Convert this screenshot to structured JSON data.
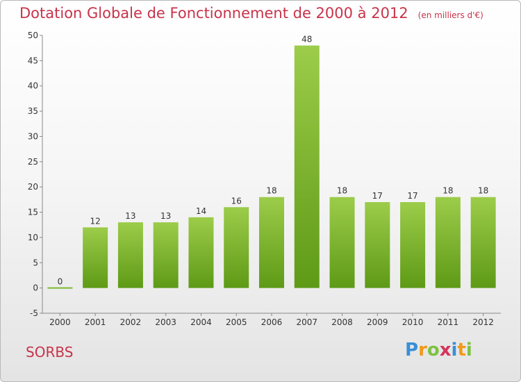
{
  "chart_data": {
    "type": "bar",
    "title": "Dotation Globale de Fonctionnement de 2000 à 2012",
    "subtitle": "(en milliers d'€)",
    "categories": [
      "2000",
      "2001",
      "2002",
      "2003",
      "2004",
      "2005",
      "2006",
      "2007",
      "2008",
      "2009",
      "2010",
      "2011",
      "2012"
    ],
    "values": [
      0,
      12,
      13,
      13,
      14,
      16,
      18,
      48,
      18,
      17,
      17,
      18,
      18
    ],
    "ylim": [
      -5,
      50
    ],
    "yticks": [
      -5,
      0,
      5,
      10,
      15,
      20,
      25,
      30,
      35,
      40,
      45,
      50
    ],
    "grid": false,
    "bar_color_top": "#9ccc4a",
    "bar_color_bottom": "#5e9a16"
  },
  "commune": "SORBS",
  "logo": {
    "letters": [
      "P",
      "r",
      "o",
      "x",
      "i",
      "t",
      "i"
    ],
    "colors": [
      "#3a8fd6",
      "#f09a1a",
      "#7cc242",
      "#d6335a",
      "#3a8fd6",
      "#f09a1a",
      "#7cc242"
    ]
  }
}
